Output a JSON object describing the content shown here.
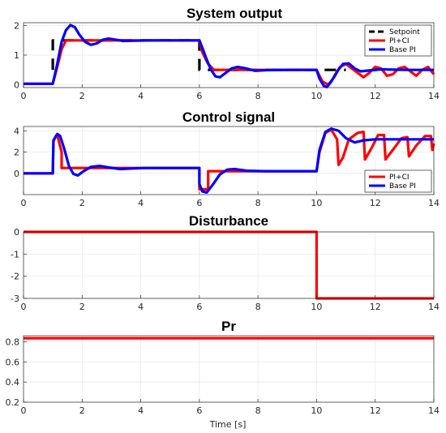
{
  "figure": {
    "xlabel": "Time [s]"
  },
  "colors": {
    "setpoint": "#000000",
    "pici": "#ff0000",
    "basepi": "#0000ff"
  },
  "chart_data": [
    {
      "id": "output",
      "type": "line",
      "title": "System output",
      "xlim": [
        0,
        14
      ],
      "ylim": [
        -0.1,
        2.1
      ],
      "xticks": [
        0,
        2,
        4,
        6,
        8,
        10,
        12,
        14
      ],
      "yticks": [
        0,
        1,
        2
      ],
      "grid": true,
      "legend": "top-right",
      "series": [
        {
          "name": "Setpoint",
          "color": "#000000",
          "style": "dashed",
          "points": [
            [
              1,
              0.5
            ],
            [
              1,
              1.5
            ],
            [
              6,
              1.5
            ],
            [
              6,
              0.5
            ],
            [
              11,
              0.5
            ]
          ]
        },
        {
          "name": "PI+CI",
          "color": "#ff0000",
          "points": [
            [
              0,
              0.03
            ],
            [
              1,
              0.03
            ],
            [
              1.15,
              0.6
            ],
            [
              1.3,
              1.2
            ],
            [
              1.45,
              1.5
            ],
            [
              6,
              1.5
            ],
            [
              6.1,
              1.1
            ],
            [
              6.3,
              0.7
            ],
            [
              6.5,
              0.5
            ],
            [
              10,
              0.5
            ],
            [
              10.2,
              0.1
            ],
            [
              10.4,
              0.0
            ],
            [
              10.6,
              0.25
            ],
            [
              10.8,
              0.6
            ],
            [
              11,
              0.7
            ],
            [
              11.2,
              0.55
            ],
            [
              11.4,
              0.4
            ],
            [
              11.6,
              0.25
            ],
            [
              11.8,
              0.4
            ],
            [
              12,
              0.6
            ],
            [
              12.2,
              0.55
            ],
            [
              12.4,
              0.3
            ],
            [
              12.6,
              0.35
            ],
            [
              12.8,
              0.55
            ],
            [
              13,
              0.6
            ],
            [
              13.2,
              0.45
            ],
            [
              13.4,
              0.3
            ],
            [
              13.6,
              0.5
            ],
            [
              13.8,
              0.6
            ],
            [
              14,
              0.35
            ]
          ]
        },
        {
          "name": "Base PI",
          "color": "#0000ff",
          "points": [
            [
              0,
              0.03
            ],
            [
              1,
              0.03
            ],
            [
              1.15,
              0.7
            ],
            [
              1.3,
              1.45
            ],
            [
              1.45,
              1.85
            ],
            [
              1.6,
              2.02
            ],
            [
              1.75,
              1.95
            ],
            [
              1.9,
              1.7
            ],
            [
              2.1,
              1.45
            ],
            [
              2.3,
              1.35
            ],
            [
              2.5,
              1.4
            ],
            [
              2.7,
              1.52
            ],
            [
              2.9,
              1.56
            ],
            [
              3.1,
              1.53
            ],
            [
              3.4,
              1.48
            ],
            [
              3.8,
              1.49
            ],
            [
              4.5,
              1.5
            ],
            [
              6,
              1.5
            ],
            [
              6.1,
              1.25
            ],
            [
              6.25,
              0.85
            ],
            [
              6.4,
              0.5
            ],
            [
              6.55,
              0.28
            ],
            [
              6.7,
              0.25
            ],
            [
              6.9,
              0.4
            ],
            [
              7.1,
              0.55
            ],
            [
              7.3,
              0.6
            ],
            [
              7.6,
              0.55
            ],
            [
              7.9,
              0.47
            ],
            [
              8.3,
              0.49
            ],
            [
              9,
              0.5
            ],
            [
              10,
              0.5
            ],
            [
              10.1,
              0.2
            ],
            [
              10.25,
              -0.05
            ],
            [
              10.35,
              -0.08
            ],
            [
              10.5,
              0.1
            ],
            [
              10.7,
              0.45
            ],
            [
              10.9,
              0.7
            ],
            [
              11.1,
              0.72
            ],
            [
              11.3,
              0.55
            ],
            [
              11.5,
              0.45
            ],
            [
              11.8,
              0.48
            ],
            [
              12.2,
              0.52
            ],
            [
              13,
              0.5
            ],
            [
              14,
              0.5
            ]
          ]
        }
      ]
    },
    {
      "id": "control",
      "type": "line",
      "title": "Control signal",
      "xlim": [
        0,
        14
      ],
      "ylim": [
        -2,
        4.4
      ],
      "xticks": [
        0,
        2,
        4,
        6,
        8,
        10,
        12,
        14
      ],
      "yticks": [
        0,
        2,
        4
      ],
      "grid": true,
      "legend": "bottom-right",
      "series": [
        {
          "name": "PI+CI",
          "color": "#ff0000",
          "points": [
            [
              0,
              0
            ],
            [
              1,
              0
            ],
            [
              1.02,
              3
            ],
            [
              1.1,
              3.5
            ],
            [
              1.15,
              3.6
            ],
            [
              1.3,
              2
            ],
            [
              1.3,
              0.5
            ],
            [
              6,
              0.5
            ],
            [
              6,
              -1.5
            ],
            [
              6.3,
              -1.5
            ],
            [
              6.3,
              0.2
            ],
            [
              10,
              0.2
            ],
            [
              10.1,
              2
            ],
            [
              10.3,
              3.8
            ],
            [
              10.5,
              4.1
            ],
            [
              10.7,
              3.2
            ],
            [
              10.75,
              0.8
            ],
            [
              10.9,
              1.5
            ],
            [
              11.1,
              3.2
            ],
            [
              11.4,
              3.8
            ],
            [
              11.6,
              3.9
            ],
            [
              11.65,
              1.3
            ],
            [
              11.9,
              2.5
            ],
            [
              12.1,
              3.6
            ],
            [
              12.3,
              3.6
            ],
            [
              12.35,
              1.3
            ],
            [
              12.6,
              2.2
            ],
            [
              12.9,
              3.3
            ],
            [
              13.1,
              3.4
            ],
            [
              13.15,
              1.6
            ],
            [
              13.4,
              2.6
            ],
            [
              13.7,
              3.5
            ],
            [
              13.9,
              3.5
            ],
            [
              13.95,
              2.2
            ],
            [
              14,
              2.8
            ]
          ]
        },
        {
          "name": "Base PI",
          "color": "#0000ff",
          "points": [
            [
              0,
              0
            ],
            [
              1,
              0
            ],
            [
              1.02,
              3.1
            ],
            [
              1.15,
              3.7
            ],
            [
              1.25,
              3.5
            ],
            [
              1.4,
              2.2
            ],
            [
              1.55,
              0.7
            ],
            [
              1.7,
              -0.05
            ],
            [
              1.85,
              -0.2
            ],
            [
              2.05,
              0.2
            ],
            [
              2.3,
              0.6
            ],
            [
              2.6,
              0.7
            ],
            [
              2.9,
              0.55
            ],
            [
              3.3,
              0.4
            ],
            [
              3.7,
              0.45
            ],
            [
              4.2,
              0.5
            ],
            [
              6,
              0.5
            ],
            [
              6,
              -1
            ],
            [
              6.1,
              -1.7
            ],
            [
              6.25,
              -1.8
            ],
            [
              6.45,
              -1.1
            ],
            [
              6.7,
              -0.1
            ],
            [
              6.95,
              0.35
            ],
            [
              7.2,
              0.4
            ],
            [
              7.6,
              0.25
            ],
            [
              8.2,
              0.2
            ],
            [
              10,
              0.2
            ],
            [
              10.1,
              2.2
            ],
            [
              10.3,
              3.9
            ],
            [
              10.5,
              4.2
            ],
            [
              10.75,
              4.0
            ],
            [
              11,
              3.3
            ],
            [
              11.3,
              2.9
            ],
            [
              11.6,
              3.1
            ],
            [
              12,
              3.2
            ],
            [
              14,
              3.2
            ]
          ]
        }
      ]
    },
    {
      "id": "disturbance",
      "type": "line",
      "title": "Disturbance",
      "xlim": [
        0,
        14
      ],
      "ylim": [
        -3,
        0
      ],
      "xticks": [
        0,
        2,
        4,
        6,
        8,
        10,
        12,
        14
      ],
      "yticks": [
        0,
        -1,
        -2,
        -3
      ],
      "grid": true,
      "series": [
        {
          "color": "#ff0000",
          "points": [
            [
              0,
              0
            ],
            [
              10,
              0
            ],
            [
              10,
              -3
            ],
            [
              14,
              -3
            ]
          ]
        }
      ]
    },
    {
      "id": "pr",
      "type": "line",
      "title": "Pr",
      "xlim": [
        0,
        14
      ],
      "ylim": [
        0.2,
        0.86
      ],
      "xticks": [
        0,
        2,
        4,
        6,
        8,
        10,
        12,
        14
      ],
      "yticks": [
        0.2,
        0.4,
        0.6,
        0.8
      ],
      "grid": true,
      "series": [
        {
          "color": "#ff0000",
          "points": [
            [
              0,
              0.835
            ],
            [
              14,
              0.835
            ]
          ]
        }
      ]
    }
  ]
}
